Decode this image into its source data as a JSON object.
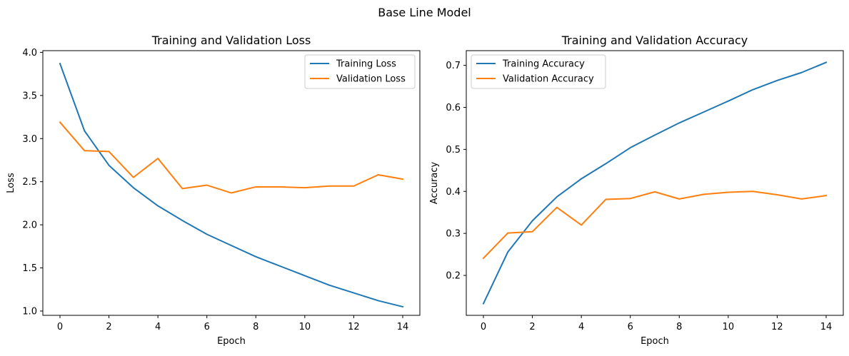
{
  "figure": {
    "suptitle": "Base Line Model"
  },
  "chart_data": [
    {
      "type": "line",
      "title": "Training and Validation Loss",
      "xlabel": "Epoch",
      "ylabel": "Loss",
      "x": [
        0,
        1,
        2,
        3,
        4,
        5,
        6,
        7,
        8,
        9,
        10,
        11,
        12,
        13,
        14
      ],
      "xlim": [
        -0.7,
        14.7
      ],
      "ylim": [
        0.95,
        4.02
      ],
      "xticks": [
        0,
        2,
        4,
        6,
        8,
        10,
        12,
        14
      ],
      "yticks": [
        1.0,
        1.5,
        2.0,
        2.5,
        3.0,
        3.5,
        4.0
      ],
      "ytick_labels": [
        "1.0",
        "1.5",
        "2.0",
        "2.5",
        "3.0",
        "3.5",
        "4.0"
      ],
      "legend_position": "upper right",
      "grid": false,
      "series": [
        {
          "name": "Training Loss",
          "color": "#1f77b4",
          "values": [
            3.87,
            3.09,
            2.69,
            2.43,
            2.22,
            2.05,
            1.89,
            1.76,
            1.63,
            1.52,
            1.41,
            1.3,
            1.21,
            1.12,
            1.05
          ]
        },
        {
          "name": "Validation Loss",
          "color": "#ff7f0e",
          "values": [
            3.19,
            2.86,
            2.85,
            2.55,
            2.77,
            2.42,
            2.46,
            2.37,
            2.44,
            2.44,
            2.43,
            2.45,
            2.45,
            2.58,
            2.53
          ]
        }
      ]
    },
    {
      "type": "line",
      "title": "Training and Validation Accuracy",
      "xlabel": "Epoch",
      "ylabel": "Accuracy",
      "x": [
        0,
        1,
        2,
        3,
        4,
        5,
        6,
        7,
        8,
        9,
        10,
        11,
        12,
        13,
        14
      ],
      "xlim": [
        -0.7,
        14.7
      ],
      "ylim": [
        0.105,
        0.735
      ],
      "xticks": [
        0,
        2,
        4,
        6,
        8,
        10,
        12,
        14
      ],
      "yticks": [
        0.2,
        0.3,
        0.4,
        0.5,
        0.6,
        0.7
      ],
      "ytick_labels": [
        "0.2",
        "0.3",
        "0.4",
        "0.5",
        "0.6",
        "0.7"
      ],
      "legend_position": "upper left",
      "grid": false,
      "series": [
        {
          "name": "Training Accuracy",
          "color": "#1f77b4",
          "values": [
            0.133,
            0.256,
            0.33,
            0.387,
            0.43,
            0.466,
            0.504,
            0.534,
            0.563,
            0.589,
            0.615,
            0.642,
            0.664,
            0.683,
            0.707
          ]
        },
        {
          "name": "Validation Accuracy",
          "color": "#ff7f0e",
          "values": [
            0.241,
            0.301,
            0.304,
            0.362,
            0.32,
            0.381,
            0.383,
            0.399,
            0.382,
            0.393,
            0.398,
            0.4,
            0.392,
            0.382,
            0.39
          ]
        }
      ]
    }
  ]
}
